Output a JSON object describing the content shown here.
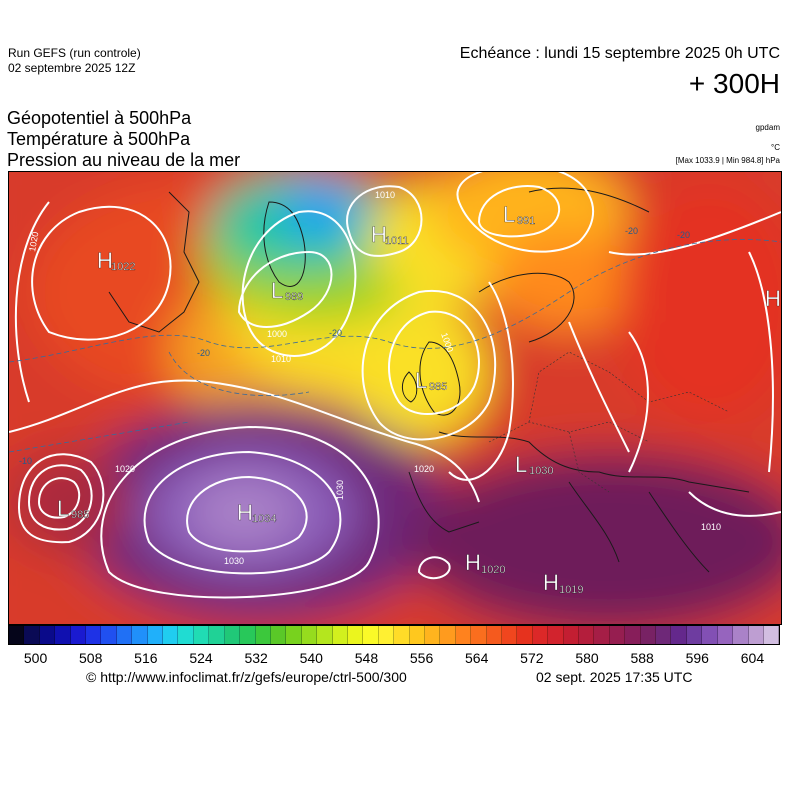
{
  "header": {
    "run_label": "Run GEFS (run controle)",
    "run_date": "02 septembre 2025 12Z",
    "valid_time": "Echéance : lundi 15 septembre 2025 0h UTC",
    "lead_time": "+ 300H"
  },
  "titles": [
    "Géopotentiel à 500hPa",
    "Température à 500hPa",
    "Pression au niveau de la mer"
  ],
  "units": {
    "geopotential": "gpdam",
    "temperature": "°C",
    "pressure_minmax": "[Max 1033.9 | Min 984.8] hPa"
  },
  "colorbar": {
    "tick_labels": [
      "500",
      "508",
      "516",
      "524",
      "532",
      "540",
      "548",
      "556",
      "564",
      "572",
      "580",
      "588",
      "596",
      "604"
    ],
    "colors": [
      "#05051a",
      "#0a0a55",
      "#0a0a8a",
      "#1010b0",
      "#1a1ad0",
      "#1e32e6",
      "#2050f0",
      "#2070f5",
      "#2090fa",
      "#20b0fa",
      "#20cdf0",
      "#20dcd2",
      "#20dcb4",
      "#20d296",
      "#20c878",
      "#28c85a",
      "#3cc83c",
      "#5ac828",
      "#78d21e",
      "#96dc1e",
      "#b4e61e",
      "#d2f01e",
      "#ebf51e",
      "#fafa28",
      "#fff032",
      "#ffdc28",
      "#ffc81e",
      "#ffb41e",
      "#ff9b1e",
      "#ff821e",
      "#fa6e1e",
      "#f55a1e",
      "#f0461e",
      "#e6321e",
      "#dc2828",
      "#d2232d",
      "#c31e32",
      "#b41e3c",
      "#a51e46",
      "#961e50",
      "#871e5a",
      "#782264",
      "#6e2878",
      "#64288c",
      "#6e3ca0",
      "#8250b4",
      "#9664be",
      "#aa82c8",
      "#be9ed2",
      "#d2bee1"
    ]
  },
  "pressure_centers": [
    {
      "type": "H",
      "value": "1022"
    },
    {
      "type": "L",
      "value": "989"
    },
    {
      "type": "H",
      "value": "1011"
    },
    {
      "type": "L",
      "value": "991"
    },
    {
      "type": "L",
      "value": "985"
    },
    {
      "type": "H",
      "value": "1034"
    },
    {
      "type": "L",
      "value": "985"
    },
    {
      "type": "H",
      "value": "1020"
    },
    {
      "type": "H",
      "value": "1019"
    },
    {
      "type": "L",
      "value": "1030"
    },
    {
      "type": "H",
      "value": ""
    }
  ],
  "isobar_labels": [
    "1020",
    "1010",
    "1000",
    "1020",
    "1030",
    "1030",
    "1020",
    "1010",
    "1000",
    "1010"
  ],
  "temperature_labels": [
    "-20",
    "-20",
    "-20",
    "-20",
    "-10"
  ],
  "footer": {
    "credit": "© http://www.infoclimat.fr/z/gefs/europe/ctrl-500/300",
    "generated": "02 sept. 2025 17:35 UTC"
  }
}
